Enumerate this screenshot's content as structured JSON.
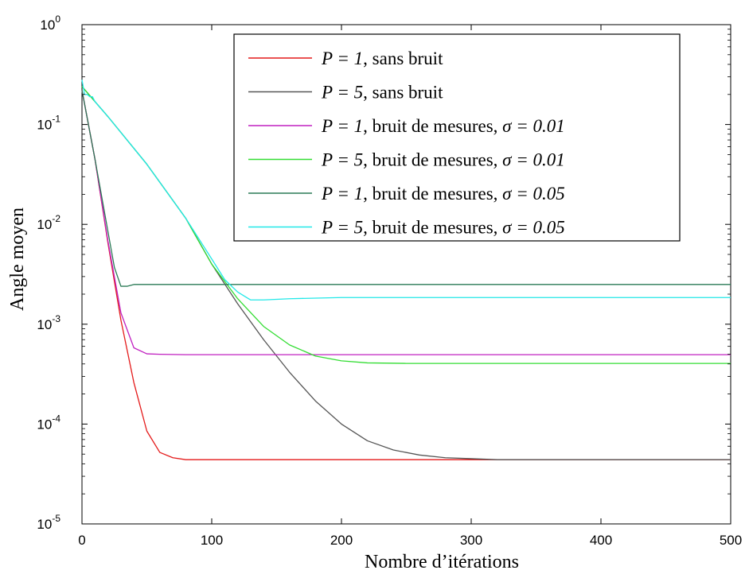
{
  "chart_data": {
    "type": "line",
    "xlabel": "Nombre d’itérations",
    "ylabel": "Angle moyen",
    "xlim": [
      0,
      500
    ],
    "ylim": [
      1e-05,
      1
    ],
    "yscale": "log",
    "grid": false,
    "legend_position": "top-right",
    "x_ticks": [
      "0",
      "100",
      "200",
      "300",
      "400",
      "500"
    ],
    "y_ticks": [
      {
        "base": "10",
        "exp": "0"
      },
      {
        "base": "10",
        "exp": "-1"
      },
      {
        "base": "10",
        "exp": "-2"
      },
      {
        "base": "10",
        "exp": "-3"
      },
      {
        "base": "10",
        "exp": "-4"
      },
      {
        "base": "10",
        "exp": "-5"
      }
    ],
    "series": [
      {
        "name": "P = 1, sans bruit",
        "legend_math": "P = 1",
        "legend_rest": ", sans bruit",
        "color": "#e41a1a",
        "x": [
          0,
          10,
          20,
          30,
          40,
          50,
          60,
          70,
          80,
          90,
          100,
          150,
          200,
          300,
          400,
          500
        ],
        "y": [
          0.22,
          0.045,
          0.0065,
          0.0011,
          0.00026,
          8.5e-05,
          5.2e-05,
          4.6e-05,
          4.4e-05,
          4.4e-05,
          4.4e-05,
          4.4e-05,
          4.4e-05,
          4.4e-05,
          4.4e-05,
          4.4e-05
        ]
      },
      {
        "name": "P = 5, sans bruit",
        "legend_math": "P = 5",
        "legend_rest": ", sans bruit",
        "color": "#555555",
        "x": [
          0,
          20,
          50,
          80,
          100,
          120,
          140,
          160,
          180,
          200,
          220,
          240,
          260,
          280,
          300,
          320,
          350,
          400,
          500
        ],
        "y": [
          0.24,
          0.12,
          0.04,
          0.0115,
          0.004,
          0.0016,
          0.0007,
          0.00033,
          0.00017,
          0.0001,
          6.8e-05,
          5.5e-05,
          4.9e-05,
          4.6e-05,
          4.5e-05,
          4.4e-05,
          4.4e-05,
          4.4e-05,
          4.4e-05
        ]
      },
      {
        "name": "P = 1, bruit de mesures, σ = 0.01",
        "legend_math": "P = 1",
        "legend_rest": ", bruit de mesures, ",
        "legend_sigma": "σ = 0.01",
        "color": "#c020c0",
        "x": [
          0,
          10,
          20,
          30,
          40,
          50,
          60,
          80,
          100,
          200,
          300,
          400,
          500
        ],
        "y": [
          0.22,
          0.045,
          0.0068,
          0.0013,
          0.00058,
          0.000505,
          0.0005,
          0.000495,
          0.000495,
          0.000495,
          0.000495,
          0.000495,
          0.000495
        ]
      },
      {
        "name": "P = 5, bruit de mesures, σ = 0.01",
        "legend_math": "P = 5",
        "legend_rest": ", bruit de mesures, ",
        "legend_sigma": "σ = 0.01",
        "color": "#33dd33",
        "x": [
          0,
          20,
          50,
          80,
          100,
          120,
          140,
          160,
          180,
          200,
          220,
          250,
          300,
          400,
          500
        ],
        "y": [
          0.24,
          0.12,
          0.04,
          0.0115,
          0.004,
          0.0018,
          0.00095,
          0.00062,
          0.00048,
          0.00043,
          0.00041,
          0.000405,
          0.000405,
          0.000405,
          0.000405
        ]
      },
      {
        "name": "P = 1, bruit de mesures, σ = 0.05",
        "legend_math": "P = 1",
        "legend_rest": ", bruit de mesures, ",
        "legend_sigma": "σ = 0.05",
        "color": "#2a7a55",
        "x": [
          0,
          10,
          20,
          25,
          30,
          35,
          40,
          50,
          60,
          100,
          200,
          300,
          400,
          500
        ],
        "y": [
          0.22,
          0.045,
          0.0085,
          0.0037,
          0.0024,
          0.0024,
          0.0025,
          0.0025,
          0.0025,
          0.0025,
          0.0025,
          0.0025,
          0.0025,
          0.0025
        ]
      },
      {
        "name": "P = 5, bruit de mesures, σ = 0.05",
        "legend_math": "P = 5",
        "legend_rest": ", bruit de mesures, ",
        "legend_sigma": "σ = 0.05",
        "color": "#22e8e8",
        "x": [
          0,
          2,
          4,
          6,
          8,
          10,
          20,
          50,
          80,
          100,
          110,
          120,
          130,
          140,
          160,
          200,
          300,
          400,
          500
        ],
        "y": [
          0.28,
          0.2,
          0.2,
          0.19,
          0.19,
          0.17,
          0.12,
          0.04,
          0.0115,
          0.0045,
          0.0028,
          0.0021,
          0.00175,
          0.00175,
          0.0018,
          0.00185,
          0.00185,
          0.00185,
          0.00185
        ]
      }
    ]
  }
}
